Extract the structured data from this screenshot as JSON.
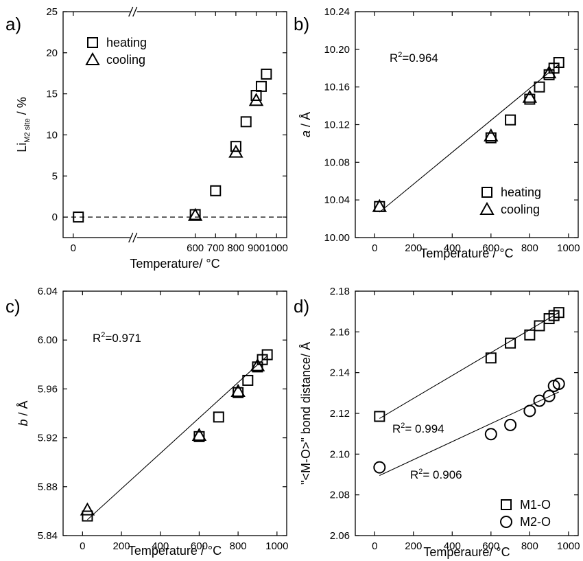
{
  "chart_data": [
    {
      "panel": "a)",
      "type": "scatter",
      "xlabel": "Temperature/ °C",
      "ylabel_main": "Li",
      "ylabel_sub": "M2 site",
      "ylabel_tail": " / %",
      "xlim": [
        -50,
        1050
      ],
      "ylim": [
        -2.5,
        25
      ],
      "xticks": [
        0,
        600,
        700,
        800,
        900,
        1000
      ],
      "xtick_labels": [
        "0",
        "600",
        "700",
        "800",
        "900",
        "1000"
      ],
      "yticks": [
        0,
        5,
        10,
        15,
        20,
        25
      ],
      "ytick_labels": [
        "0",
        "5",
        "10",
        "15",
        "20",
        "25"
      ],
      "axis_break": true,
      "dashed_zero_line": true,
      "legend": {
        "position": "top-left",
        "entries": [
          {
            "marker": "square",
            "label": "heating"
          },
          {
            "marker": "triangle",
            "label": "cooling"
          }
        ]
      },
      "series": [
        {
          "name": "heating",
          "marker": "square",
          "x": [
            25,
            600,
            700,
            800,
            850,
            900,
            925,
            950
          ],
          "y": [
            0,
            0.3,
            3.2,
            8.6,
            11.6,
            14.8,
            15.9,
            17.4
          ]
        },
        {
          "name": "cooling",
          "marker": "triangle",
          "x": [
            600,
            800,
            900
          ],
          "y": [
            0.2,
            7.9,
            14.2
          ]
        }
      ]
    },
    {
      "panel": "b)",
      "type": "scatter",
      "xlabel": "Temperature / °C",
      "ylabel_main": "a",
      "ylabel_tail": " / Å",
      "xlim": [
        -100,
        1050
      ],
      "ylim": [
        10.0,
        10.24
      ],
      "xticks": [
        0,
        200,
        400,
        600,
        800,
        1000
      ],
      "xtick_labels": [
        "0",
        "200",
        "400",
        "600",
        "800",
        "1000"
      ],
      "yticks": [
        10.0,
        10.04,
        10.08,
        10.12,
        10.16,
        10.2,
        10.24
      ],
      "ytick_labels": [
        "10.00",
        "10.04",
        "10.08",
        "10.12",
        "10.16",
        "10.20",
        "10.24"
      ],
      "annotation": {
        "base": "R",
        "sup": "2",
        "rest": "=0.964"
      },
      "fit_line": {
        "x": [
          25,
          950
        ],
        "y": [
          10.027,
          10.184
        ]
      },
      "legend": {
        "position": "bottom-right",
        "entries": [
          {
            "marker": "square",
            "label": "heating"
          },
          {
            "marker": "triangle",
            "label": "cooling"
          }
        ]
      },
      "series": [
        {
          "name": "heating",
          "marker": "square",
          "x": [
            25,
            600,
            700,
            800,
            850,
            900,
            925,
            950
          ],
          "y": [
            10.033,
            10.106,
            10.125,
            10.147,
            10.16,
            10.173,
            10.18,
            10.186
          ]
        },
        {
          "name": "cooling",
          "marker": "triangle",
          "x": [
            25,
            600,
            800,
            900
          ],
          "y": [
            10.033,
            10.108,
            10.149,
            10.175
          ]
        }
      ]
    },
    {
      "panel": "c)",
      "type": "scatter",
      "xlabel": "Temperature /  °C",
      "ylabel_main": "b",
      "ylabel_tail": " / Å",
      "xlim": [
        -100,
        1050
      ],
      "ylim": [
        5.84,
        6.04
      ],
      "xticks": [
        0,
        200,
        400,
        600,
        800,
        1000
      ],
      "xtick_labels": [
        "0",
        "200",
        "400",
        "600",
        "800",
        "1000"
      ],
      "yticks": [
        5.84,
        5.88,
        5.92,
        5.96,
        6.0,
        6.04
      ],
      "ytick_labels": [
        "5.84",
        "5.88",
        "5.92",
        "5.96",
        "6.00",
        "6.04"
      ],
      "annotation": {
        "base": "R",
        "sup": "2",
        "rest": "=0.971"
      },
      "fit_line": {
        "x": [
          25,
          950
        ],
        "y": [
          5.853,
          5.987
        ]
      },
      "series": [
        {
          "name": "heating",
          "marker": "square",
          "x": [
            25,
            600,
            700,
            800,
            850,
            900,
            925,
            950
          ],
          "y": [
            5.856,
            5.921,
            5.937,
            5.957,
            5.967,
            5.978,
            5.984,
            5.988
          ]
        },
        {
          "name": "cooling",
          "marker": "triangle",
          "x": [
            25,
            600,
            800,
            900
          ],
          "y": [
            5.861,
            5.922,
            5.958,
            5.979
          ]
        }
      ]
    },
    {
      "panel": "d)",
      "type": "scatter",
      "xlabel": "Temperaure/ °C",
      "ylabel_main": "\"<M-O>\" bond distance/ Å",
      "xlim": [
        -100,
        1050
      ],
      "ylim": [
        2.06,
        2.18
      ],
      "xticks": [
        0,
        200,
        400,
        600,
        800,
        1000
      ],
      "xtick_labels": [
        "0",
        "200",
        "400",
        "600",
        "800",
        "1000"
      ],
      "yticks": [
        2.06,
        2.08,
        2.1,
        2.12,
        2.14,
        2.16,
        2.18
      ],
      "ytick_labels": [
        "2.06",
        "2.08",
        "2.10",
        "2.12",
        "2.14",
        "2.16",
        "2.18"
      ],
      "annotations": [
        {
          "base": "R",
          "sup": "2",
          "rest": "= 0.994"
        },
        {
          "base": "R",
          "sup": "2",
          "rest": "= 0.906"
        }
      ],
      "fit_lines": [
        {
          "x": [
            25,
            950
          ],
          "y": [
            2.1175,
            2.1695
          ]
        },
        {
          "x": [
            25,
            950
          ],
          "y": [
            2.0895,
            2.1305
          ]
        }
      ],
      "legend": {
        "position": "bottom-right",
        "entries": [
          {
            "marker": "square",
            "label": "M1-O"
          },
          {
            "marker": "circle",
            "label": "M2-O"
          }
        ]
      },
      "series": [
        {
          "name": "M1-O",
          "marker": "square",
          "x": [
            25,
            600,
            700,
            800,
            850,
            900,
            925,
            950
          ],
          "y": [
            2.1185,
            2.1472,
            2.1545,
            2.1585,
            2.163,
            2.1665,
            2.168,
            2.1695
          ]
        },
        {
          "name": "M2-O",
          "marker": "circle",
          "x": [
            25,
            600,
            700,
            800,
            850,
            900,
            925,
            950
          ],
          "y": [
            2.0935,
            2.1098,
            2.1143,
            2.1212,
            2.1262,
            2.1285,
            2.1335,
            2.1345
          ]
        }
      ]
    }
  ]
}
